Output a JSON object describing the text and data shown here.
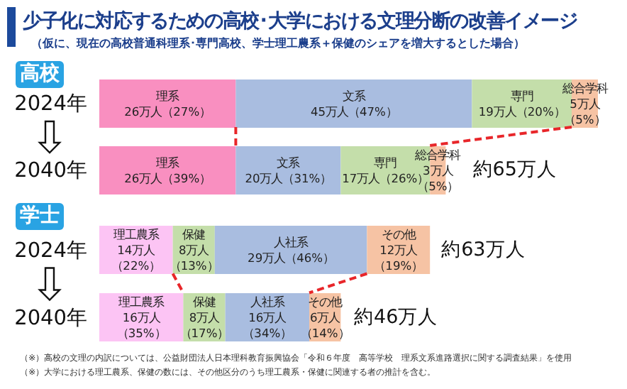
{
  "chart_data": [
    {
      "type": "bar",
      "title": "少子化に対応するための高校･大学における文理分断の改善イメージ",
      "subtitle": "（仮に、現在の高校普通科理系･専門高校、学士理工農系＋保健のシェアを増大するとした場合）",
      "ylabel": "高校",
      "orientation": "horizontal",
      "stacked": true,
      "categories": [
        "2024年",
        "2040年"
      ],
      "xlim": [
        0,
        100
      ],
      "tick_labels": "y",
      "series": [
        {
          "name": "理系",
          "color": "#f98fc0",
          "values": [
            26,
            26
          ],
          "value_labels": [
            "26万人（27%）",
            "26万人（39%）"
          ]
        },
        {
          "name": "文系",
          "color": "#a9bde0",
          "values": [
            45,
            20
          ],
          "value_labels": [
            "45万人（47%）",
            "20万人（31%）"
          ]
        },
        {
          "name": "専門",
          "color": "#c4deaa",
          "values": [
            19,
            17
          ],
          "value_labels": [
            "19万人（20%）",
            "17万人（26%）"
          ]
        },
        {
          "name": "総合学科",
          "color": "#f6c3a4",
          "values": [
            5,
            3
          ],
          "value_labels": [
            "5万人（5%）",
            "3万人（5%）"
          ]
        }
      ],
      "totals": [
        null,
        "約65万人"
      ]
    },
    {
      "type": "bar",
      "ylabel": "学士",
      "orientation": "horizontal",
      "stacked": true,
      "categories": [
        "2024年",
        "2040年"
      ],
      "xlim": [
        0,
        100
      ],
      "tick_labels": "y",
      "series": [
        {
          "name": "理工農系",
          "color": "#fcc4f4",
          "values": [
            14,
            16
          ],
          "value_labels": [
            "14万人（22%）",
            "16万人（35%）"
          ]
        },
        {
          "name": "保健",
          "color": "#c4deaa",
          "values": [
            8,
            8
          ],
          "value_labels": [
            "8万人（13%）",
            "8万人（17%）"
          ]
        },
        {
          "name": "人社系",
          "color": "#a9bde0",
          "values": [
            29,
            16
          ],
          "value_labels": [
            "29万人（46%）",
            "16万人（34%）"
          ]
        },
        {
          "name": "その他",
          "color": "#f6c3a4",
          "values": [
            12,
            6
          ],
          "value_labels": [
            "12万人（19%）",
            "6万人（14%）"
          ]
        }
      ],
      "totals": [
        "約63万人",
        "約46万人"
      ],
      "annotations": [
        "（※）高校の文理の内訳については、公益財団法人日本理科教育振興協会「令和６年度　高等学校　理系文系進路選択に関する調査結果」を使用",
        "（※）大学における理工農系、保健の数には、その他区分のうち理工農系・保健に関連する者の推計を含む。"
      ]
    }
  ]
}
